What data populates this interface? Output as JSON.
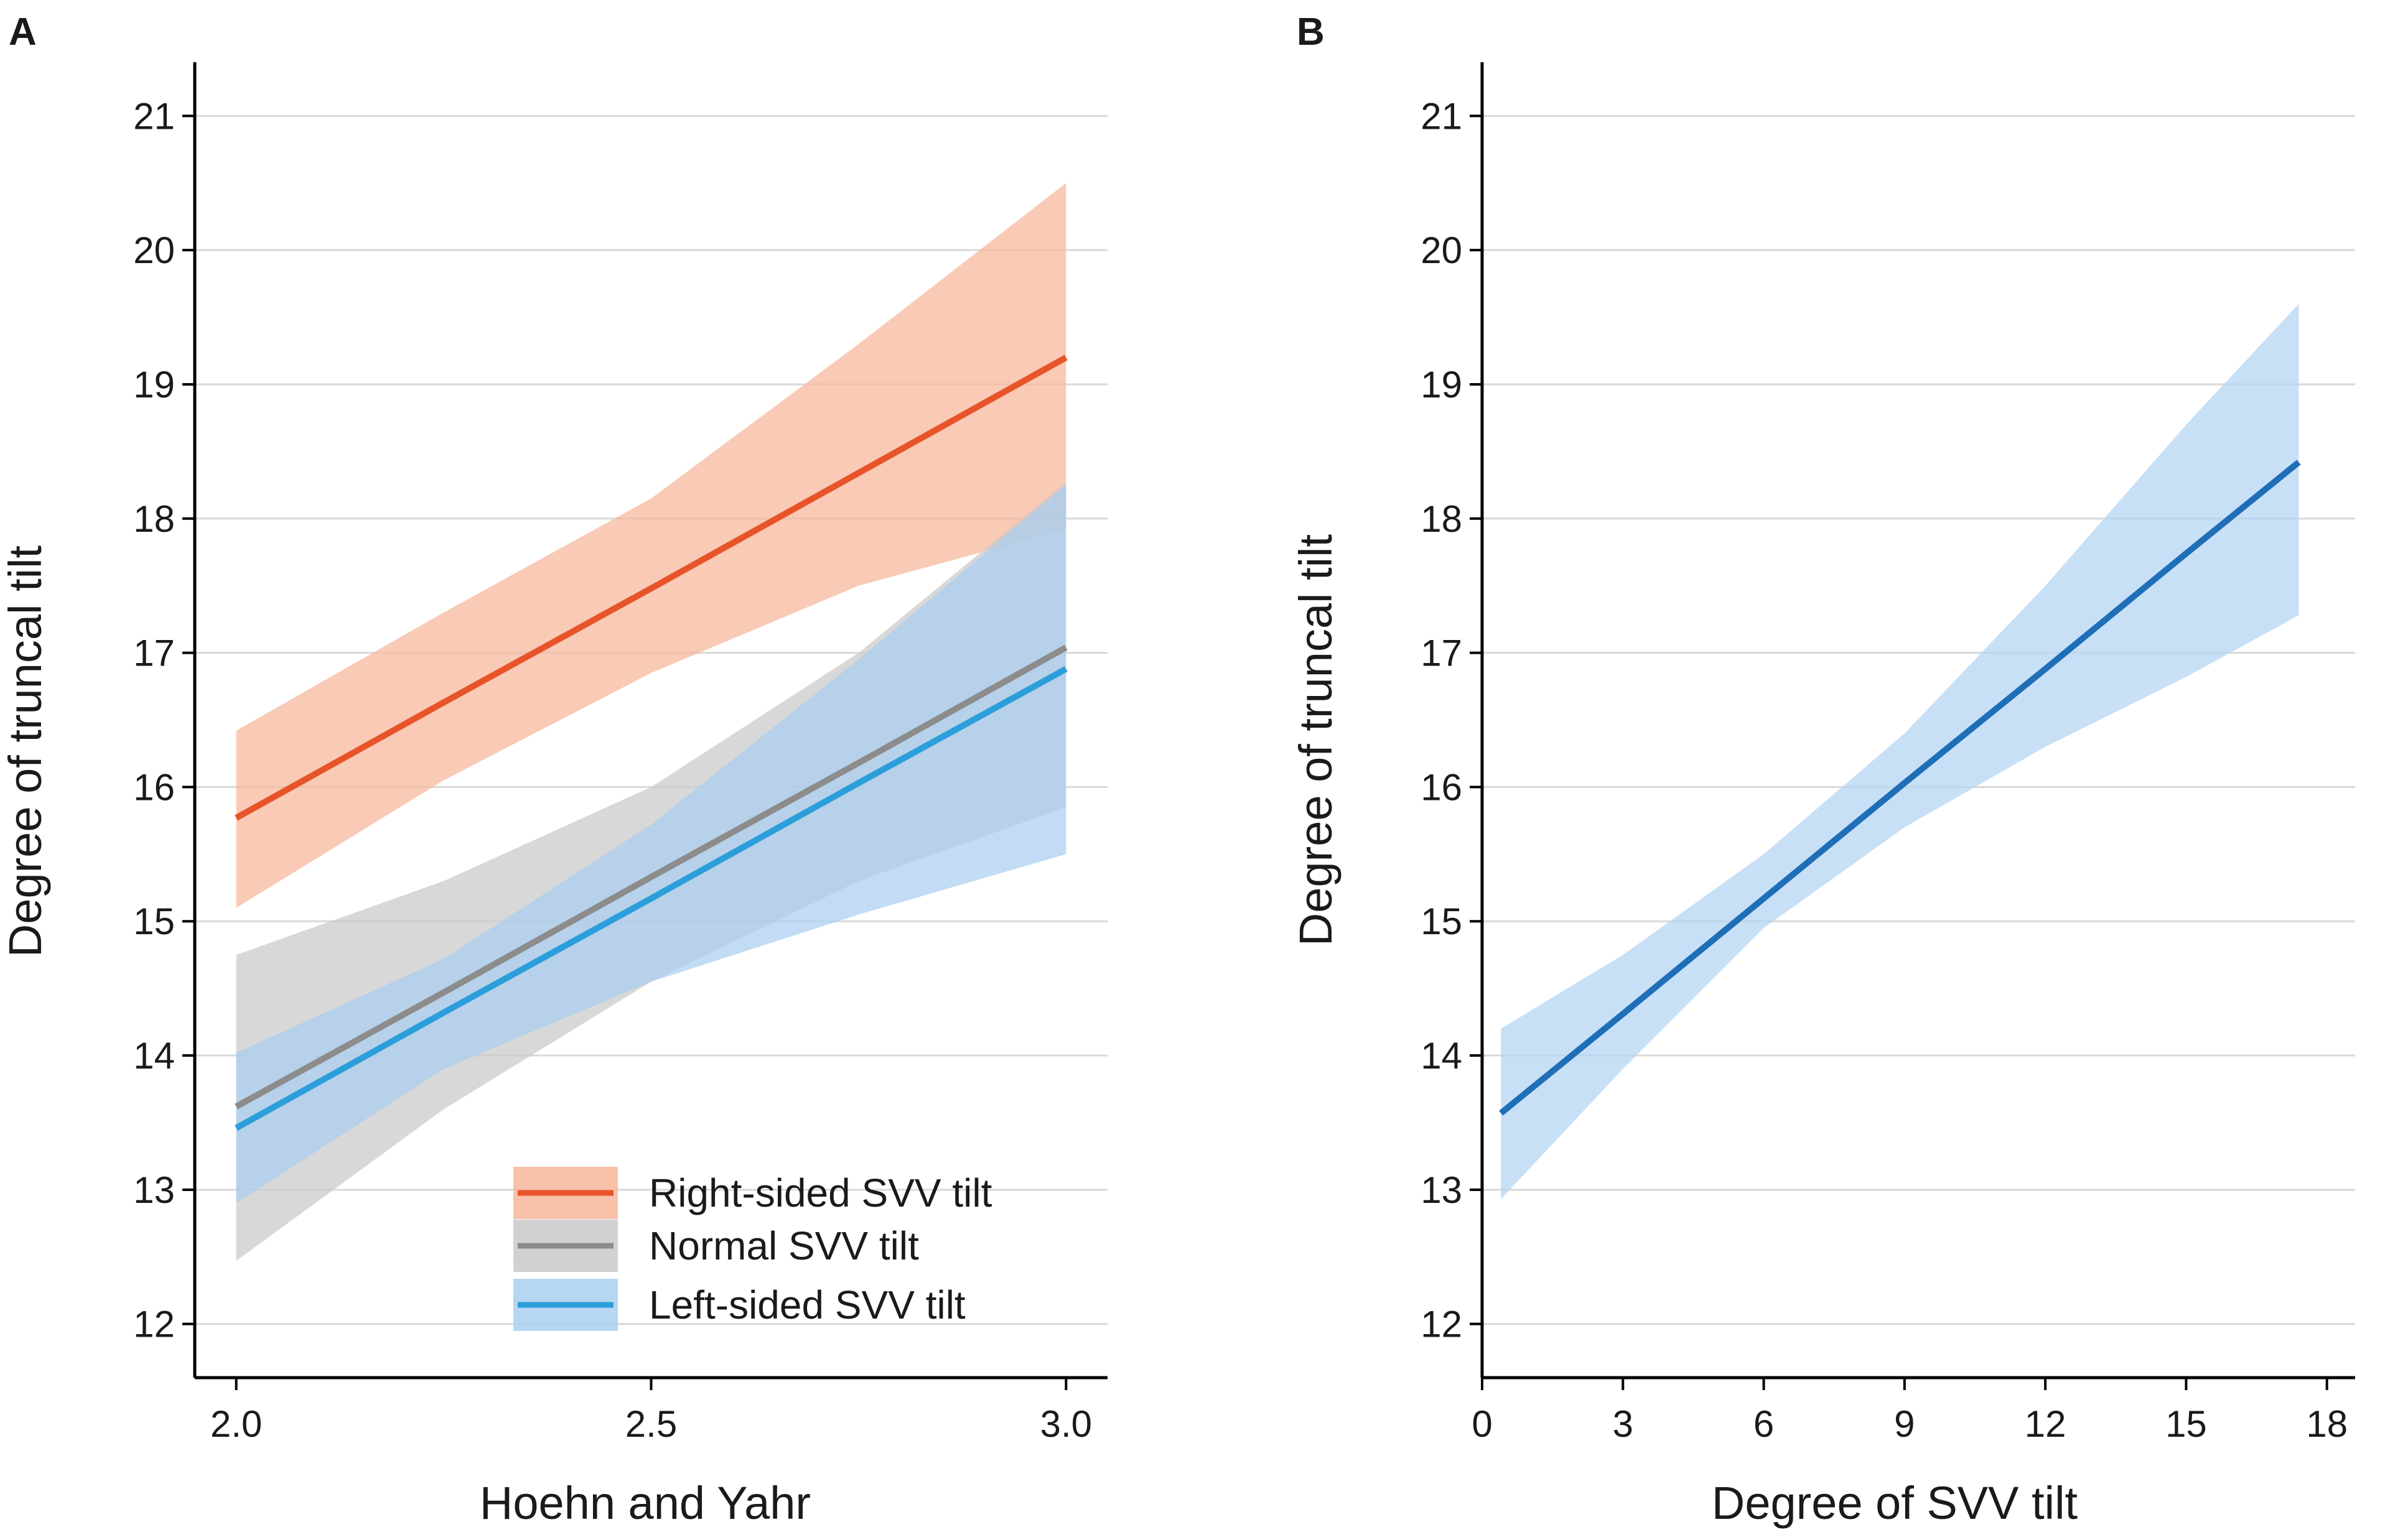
{
  "colors": {
    "right_line": "#E8542A",
    "right_band": "#F7B69A",
    "normal_line": "#8C8C8C",
    "normal_band": "#C9C9C9",
    "left_line": "#2B9EDB",
    "left_band": "#A9CFF0",
    "b_line": "#1F6EB8",
    "b_band": "#B3D4F2"
  },
  "chart_data": [
    {
      "panel": "A",
      "type": "line",
      "xlabel": "Hoehn and Yahr",
      "ylabel": "Degree of truncal tilt",
      "xlim": [
        1.95,
        3.05
      ],
      "ylim": [
        11.6,
        21.4
      ],
      "xticks": [
        2.0,
        2.5,
        3.0
      ],
      "xtick_labels": [
        "2.0",
        "2.5",
        "3.0"
      ],
      "yticks": [
        12,
        13,
        14,
        15,
        16,
        17,
        18,
        19,
        20,
        21
      ],
      "ytick_labels": [
        "12",
        "13",
        "14",
        "15",
        "16",
        "17",
        "18",
        "19",
        "20",
        "21"
      ],
      "grid": true,
      "legend_position": "bottom-right",
      "series": [
        {
          "name": "Right-sided SVV tilt",
          "color": "#E8542A",
          "band_color": "#F7B69A",
          "x": [
            2.0,
            2.25,
            2.5,
            2.75,
            3.0
          ],
          "y": [
            15.77,
            16.63,
            17.48,
            18.34,
            19.2
          ],
          "lower": [
            15.1,
            16.05,
            16.85,
            17.5,
            17.92
          ],
          "upper": [
            16.42,
            17.3,
            18.15,
            19.3,
            20.5
          ]
        },
        {
          "name": "Normal SVV tilt",
          "color": "#8C8C8C",
          "band_color": "#C9C9C9",
          "x": [
            2.0,
            2.25,
            2.5,
            2.75,
            3.0
          ],
          "y": [
            13.62,
            14.47,
            15.33,
            16.18,
            17.04
          ],
          "lower": [
            12.47,
            13.6,
            14.55,
            15.3,
            15.85
          ],
          "upper": [
            14.75,
            15.3,
            16.0,
            17.0,
            18.27
          ]
        },
        {
          "name": "Left-sided SVV tilt",
          "color": "#2B9EDB",
          "band_color": "#A9CFF0",
          "x": [
            2.0,
            2.25,
            2.5,
            2.75,
            3.0
          ],
          "y": [
            13.46,
            14.32,
            15.17,
            16.03,
            16.88
          ],
          "lower": [
            12.9,
            13.9,
            14.55,
            15.05,
            15.5
          ],
          "upper": [
            14.02,
            14.72,
            15.72,
            16.95,
            18.25
          ]
        }
      ]
    },
    {
      "panel": "B",
      "type": "line",
      "xlabel": "Degree of SVV tilt",
      "ylabel": "Degree of truncal tilt",
      "xlim": [
        0,
        18.6
      ],
      "ylim": [
        11.6,
        21.4
      ],
      "xticks": [
        0,
        3,
        6,
        9,
        12,
        15,
        18
      ],
      "xtick_labels": [
        "0",
        "3",
        "6",
        "9",
        "12",
        "15",
        "18"
      ],
      "yticks": [
        12,
        13,
        14,
        15,
        16,
        17,
        18,
        19,
        20,
        21
      ],
      "ytick_labels": [
        "12",
        "13",
        "14",
        "15",
        "16",
        "17",
        "18",
        "19",
        "20",
        "21"
      ],
      "grid": true,
      "series": [
        {
          "name": "Degree of truncal tilt",
          "color": "#1F6EB8",
          "band_color": "#B3D4F2",
          "x": [
            0.4,
            3.0,
            6.0,
            9.0,
            12.0,
            15.0,
            17.4
          ],
          "y": [
            13.57,
            14.31,
            15.17,
            16.03,
            16.88,
            17.74,
            18.42
          ],
          "lower": [
            12.93,
            13.9,
            14.95,
            15.7,
            16.3,
            16.82,
            17.28
          ],
          "upper": [
            14.2,
            14.75,
            15.5,
            16.4,
            17.5,
            18.7,
            19.6
          ]
        }
      ]
    }
  ]
}
